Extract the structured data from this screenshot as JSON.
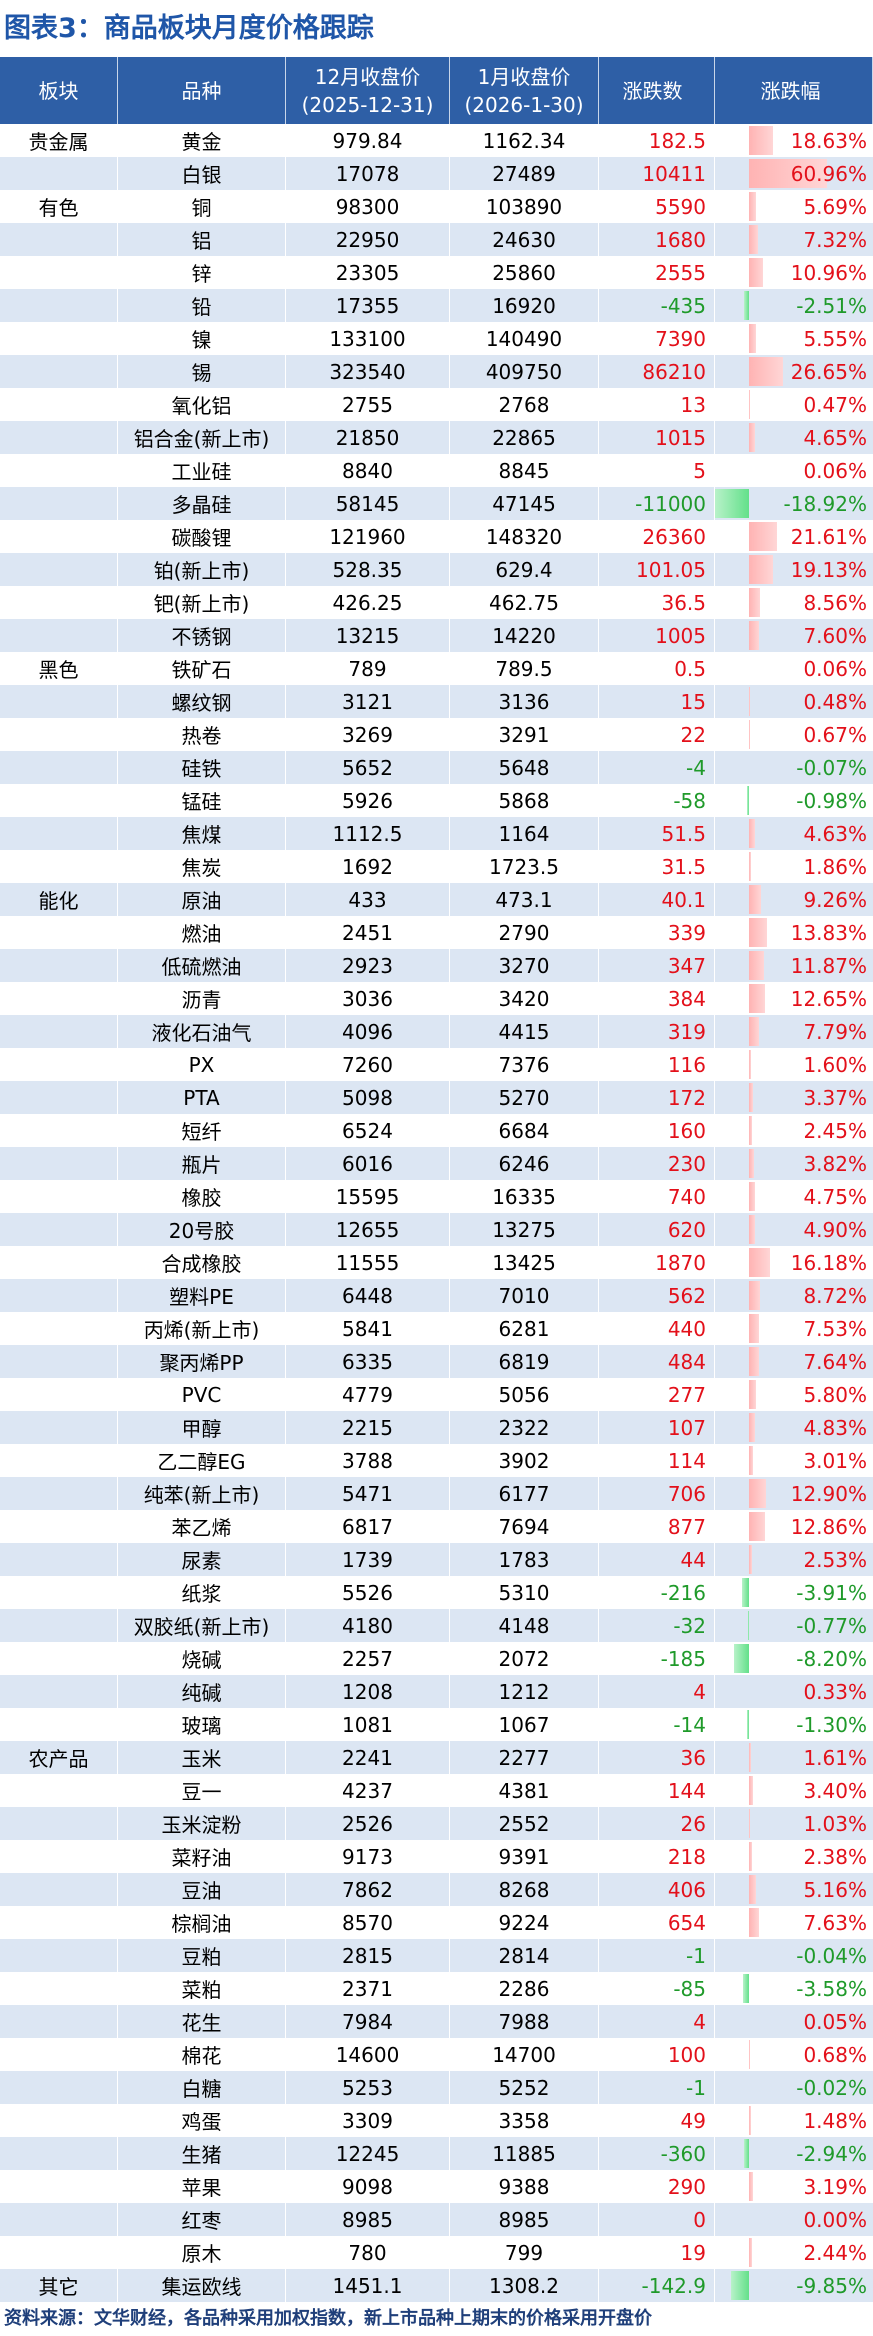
{
  "title": "图表3：商品板块月度价格跟踪",
  "table": {
    "headers": [
      [
        "板块"
      ],
      [
        "品种"
      ],
      [
        "12月收盘价",
        "(2025-12-31)"
      ],
      [
        "1月收盘价",
        "(2026-1-30)"
      ],
      [
        "涨跌数"
      ],
      [
        "涨跌幅"
      ]
    ],
    "groups": [
      {
        "sector": "贵金属",
        "rows": [
          [
            "黄金",
            979.84,
            1162.34,
            182.5,
            "18.63%"
          ],
          [
            "白银",
            17078,
            27489,
            10411,
            "60.96%"
          ]
        ]
      },
      {
        "sector": "有色",
        "rows": [
          [
            "铜",
            98300,
            103890,
            5590,
            "5.69%"
          ],
          [
            "铝",
            22950,
            24630,
            1680,
            "7.32%"
          ],
          [
            "锌",
            23305,
            25860,
            2555,
            "10.96%"
          ],
          [
            "铅",
            17355,
            16920,
            -435,
            "-2.51%"
          ],
          [
            "镍",
            133100,
            140490,
            7390,
            "5.55%"
          ],
          [
            "锡",
            323540,
            409750,
            86210,
            "26.65%"
          ],
          [
            "氧化铝",
            2755,
            2768,
            13,
            "0.47%"
          ],
          [
            "铝合金(新上市)",
            21850,
            22865,
            1015,
            "4.65%"
          ],
          [
            "工业硅",
            8840,
            8845,
            5,
            "0.06%"
          ],
          [
            "多晶硅",
            58145,
            47145,
            -11000,
            "-18.92%"
          ],
          [
            "碳酸锂",
            121960,
            148320,
            26360,
            "21.61%"
          ],
          [
            "铂(新上市)",
            528.35,
            629.4,
            101.05,
            "19.13%"
          ],
          [
            "钯(新上市)",
            426.25,
            462.75,
            36.5,
            "8.56%"
          ],
          [
            "不锈钢",
            13215,
            14220,
            1005,
            "7.60%"
          ]
        ]
      },
      {
        "sector": "黑色",
        "rows": [
          [
            "铁矿石",
            789,
            789.5,
            0.5,
            "0.06%"
          ],
          [
            "螺纹钢",
            3121,
            3136,
            15,
            "0.48%"
          ],
          [
            "热卷",
            3269,
            3291,
            22,
            "0.67%"
          ],
          [
            "硅铁",
            5652,
            5648,
            -4,
            "-0.07%"
          ],
          [
            "锰硅",
            5926,
            5868,
            -58,
            "-0.98%"
          ],
          [
            "焦煤",
            1112.5,
            1164,
            51.5,
            "4.63%"
          ],
          [
            "焦炭",
            1692,
            1723.5,
            31.5,
            "1.86%"
          ]
        ]
      },
      {
        "sector": "能化",
        "rows": [
          [
            "原油",
            433,
            473.1,
            40.1,
            "9.26%"
          ],
          [
            "燃油",
            2451,
            2790,
            339,
            "13.83%"
          ],
          [
            "低硫燃油",
            2923,
            3270,
            347,
            "11.87%"
          ],
          [
            "沥青",
            3036,
            3420,
            384,
            "12.65%"
          ],
          [
            "液化石油气",
            4096,
            4415,
            319,
            "7.79%"
          ],
          [
            "PX",
            7260,
            7376,
            116,
            "1.60%"
          ],
          [
            "PTA",
            5098,
            5270,
            172,
            "3.37%"
          ],
          [
            "短纤",
            6524,
            6684,
            160,
            "2.45%"
          ],
          [
            "瓶片",
            6016,
            6246,
            230,
            "3.82%"
          ],
          [
            "橡胶",
            15595,
            16335,
            740,
            "4.75%"
          ],
          [
            "20号胶",
            12655,
            13275,
            620,
            "4.90%"
          ],
          [
            "合成橡胶",
            11555,
            13425,
            1870,
            "16.18%"
          ],
          [
            "塑料PE",
            6448,
            7010,
            562,
            "8.72%"
          ],
          [
            "丙烯(新上市)",
            5841,
            6281,
            440,
            "7.53%"
          ],
          [
            "聚丙烯PP",
            6335,
            6819,
            484,
            "7.64%"
          ],
          [
            "PVC",
            4779,
            5056,
            277,
            "5.80%"
          ],
          [
            "甲醇",
            2215,
            2322,
            107,
            "4.83%"
          ],
          [
            "乙二醇EG",
            3788,
            3902,
            114,
            "3.01%"
          ],
          [
            "纯苯(新上市)",
            5471,
            6177,
            706,
            "12.90%"
          ],
          [
            "苯乙烯",
            6817,
            7694,
            877,
            "12.86%"
          ],
          [
            "尿素",
            1739,
            1783,
            44,
            "2.53%"
          ],
          [
            "纸浆",
            5526,
            5310,
            -216,
            "-3.91%"
          ],
          [
            "双胶纸(新上市)",
            4180,
            4148,
            -32,
            "-0.77%"
          ],
          [
            "烧碱",
            2257,
            2072,
            -185,
            "-8.20%"
          ],
          [
            "纯碱",
            1208,
            1212,
            4,
            "0.33%"
          ],
          [
            "玻璃",
            1081,
            1067,
            -14,
            "-1.30%"
          ]
        ]
      },
      {
        "sector": "农产品",
        "rows": [
          [
            "玉米",
            2241,
            2277,
            36,
            "1.61%"
          ],
          [
            "豆一",
            4237,
            4381,
            144,
            "3.40%"
          ],
          [
            "玉米淀粉",
            2526,
            2552,
            26,
            "1.03%"
          ],
          [
            "菜籽油",
            9173,
            9391,
            218,
            "2.38%"
          ],
          [
            "豆油",
            7862,
            8268,
            406,
            "5.16%"
          ],
          [
            "棕榈油",
            8570,
            9224,
            654,
            "7.63%"
          ],
          [
            "豆粕",
            2815,
            2814,
            -1,
            "-0.04%"
          ],
          [
            "菜粕",
            2371,
            2286,
            -85,
            "-3.58%"
          ],
          [
            "花生",
            7984,
            7988,
            4,
            "0.05%"
          ],
          [
            "棉花",
            14600,
            14700,
            100,
            "0.68%"
          ],
          [
            "白糖",
            5253,
            5252,
            -1,
            "-0.02%"
          ],
          [
            "鸡蛋",
            3309,
            3358,
            49,
            "1.48%"
          ],
          [
            "生猪",
            12245,
            11885,
            -360,
            "-2.94%"
          ],
          [
            "苹果",
            9098,
            9388,
            290,
            "3.19%"
          ],
          [
            "红枣",
            8985,
            8985,
            0,
            "0.00%"
          ],
          [
            "原木",
            780,
            799,
            19,
            "2.44%"
          ]
        ]
      },
      {
        "sector": "其它",
        "rows": [
          [
            "集运欧线",
            1451.1,
            1308.2,
            -142.9,
            "-9.85%"
          ]
        ]
      }
    ]
  },
  "footer": "资料来源：文华财经，各品种采用加权指数，新上市品种上期末的价格采用开盘价"
}
